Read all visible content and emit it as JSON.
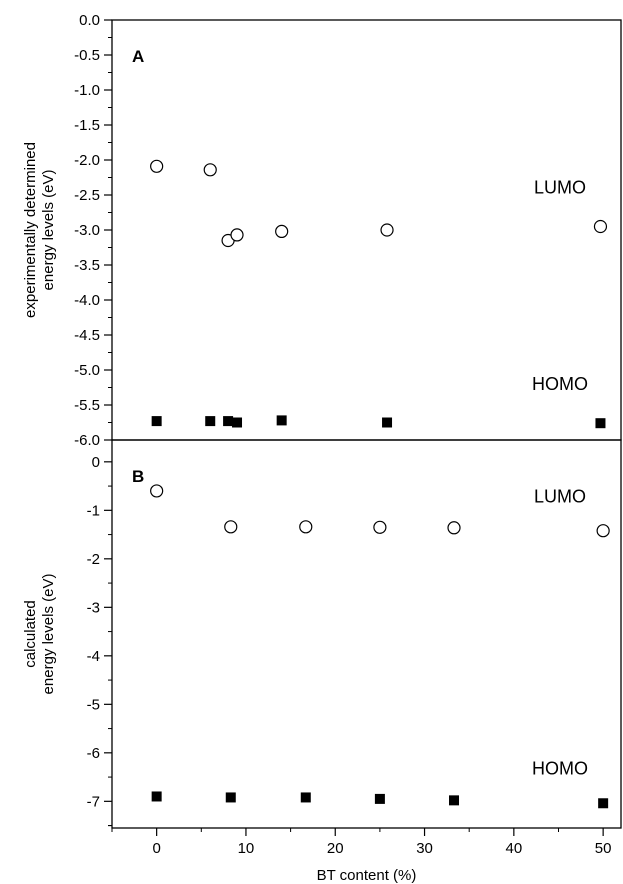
{
  "chart_data": [
    {
      "type": "scatter",
      "panel_label": "A",
      "ylabel": [
        "experimentally determined",
        "energy levels (eV)"
      ],
      "ylim": [
        -6.0,
        0.0
      ],
      "yticks": [
        "0.0",
        "-0.5",
        "-1.0",
        "-1.5",
        "-2.0",
        "-2.5",
        "-3.0",
        "-3.5",
        "-4.0",
        "-4.5",
        "-5.0",
        "-5.5",
        "-6.0"
      ],
      "xlim": [
        -5,
        52
      ],
      "series": [
        {
          "name": "LUMO",
          "marker": "open-circle",
          "points": [
            [
              0,
              -2.09
            ],
            [
              6,
              -2.14
            ],
            [
              8,
              -3.15
            ],
            [
              9,
              -3.07
            ],
            [
              14,
              -3.02
            ],
            [
              25.8,
              -3.0
            ],
            [
              49.7,
              -2.95
            ]
          ]
        },
        {
          "name": "HOMO",
          "marker": "filled-square",
          "points": [
            [
              0,
              -5.73
            ],
            [
              6,
              -5.73
            ],
            [
              8,
              -5.73
            ],
            [
              9,
              -5.75
            ],
            [
              14,
              -5.72
            ],
            [
              25.8,
              -5.75
            ],
            [
              49.7,
              -5.76
            ]
          ]
        }
      ]
    },
    {
      "type": "scatter",
      "panel_label": "B",
      "ylabel": [
        "calculated",
        "energy levels (eV)"
      ],
      "ylim": [
        -7.55,
        0.45
      ],
      "yticks": [
        "0",
        "-1",
        "-2",
        "-3",
        "-4",
        "-5",
        "-6",
        "-7"
      ],
      "xlabel": "BT content (%)",
      "xlim": [
        -5,
        52
      ],
      "xticks": [
        "0",
        "10",
        "20",
        "30",
        "40",
        "50"
      ],
      "series": [
        {
          "name": "LUMO",
          "marker": "open-circle",
          "points": [
            [
              0,
              -0.6
            ],
            [
              8.3,
              -1.34
            ],
            [
              16.7,
              -1.34
            ],
            [
              25,
              -1.35
            ],
            [
              33.3,
              -1.36
            ],
            [
              50,
              -1.42
            ]
          ]
        },
        {
          "name": "HOMO",
          "marker": "filled-square",
          "points": [
            [
              0,
              -6.9
            ],
            [
              8.3,
              -6.92
            ],
            [
              16.7,
              -6.92
            ],
            [
              25,
              -6.95
            ],
            [
              33.3,
              -6.98
            ],
            [
              50,
              -7.04
            ]
          ]
        }
      ]
    }
  ]
}
